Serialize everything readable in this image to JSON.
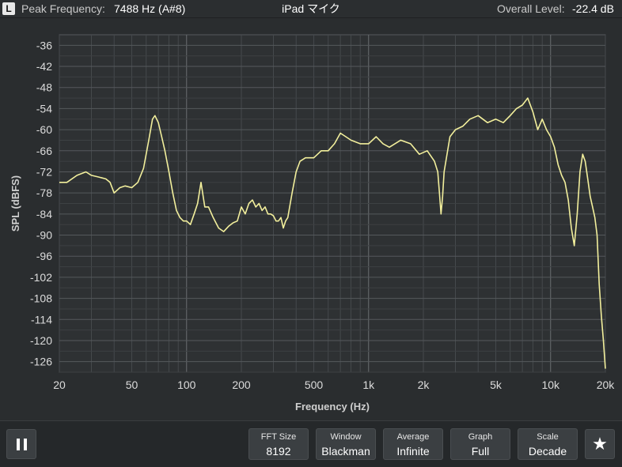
{
  "header": {
    "channel_badge": "L",
    "peak_label": "Peak Frequency:",
    "peak_value": "7488 Hz (A#8)",
    "device_name": "iPad マイク",
    "overall_label": "Overall Level:",
    "overall_value": "-22.4 dB"
  },
  "chart_data": {
    "type": "line",
    "xlabel": "Frequency (Hz)",
    "ylabel": "SPL (dBFS)",
    "x_scale": "log",
    "xlim": [
      20,
      20000
    ],
    "ylim": [
      -130,
      -32
    ],
    "x_ticks": [
      {
        "value": 20,
        "label": "20"
      },
      {
        "value": 50,
        "label": "50"
      },
      {
        "value": 100,
        "label": "100"
      },
      {
        "value": 200,
        "label": "200"
      },
      {
        "value": 500,
        "label": "500"
      },
      {
        "value": 1000,
        "label": "1k"
      },
      {
        "value": 2000,
        "label": "2k"
      },
      {
        "value": 5000,
        "label": "5k"
      },
      {
        "value": 10000,
        "label": "10k"
      },
      {
        "value": 20000,
        "label": "20k"
      }
    ],
    "y_ticks": [
      -36,
      -42,
      -48,
      -54,
      -60,
      -66,
      -72,
      -78,
      -84,
      -90,
      -96,
      -102,
      -108,
      -114,
      -120,
      -126
    ],
    "grid": true,
    "series": [
      {
        "color": "#f2ef9c",
        "x": [
          20,
          22,
          25,
          28,
          30,
          33,
          36,
          38,
          40,
          43,
          46,
          50,
          54,
          58,
          62,
          65,
          67,
          70,
          73,
          76,
          80,
          84,
          88,
          92,
          96,
          100,
          105,
          110,
          115,
          120,
          126,
          132,
          140,
          150,
          160,
          170,
          180,
          190,
          200,
          210,
          220,
          230,
          240,
          250,
          260,
          270,
          280,
          290,
          300,
          310,
          320,
          330,
          340,
          350,
          360,
          380,
          400,
          420,
          450,
          480,
          500,
          550,
          600,
          650,
          700,
          750,
          800,
          900,
          1000,
          1100,
          1200,
          1300,
          1500,
          1700,
          1900,
          2100,
          2300,
          2400,
          2450,
          2500,
          2550,
          2600,
          2800,
          3000,
          3300,
          3600,
          4000,
          4500,
          5000,
          5500,
          6000,
          6500,
          7000,
          7488,
          8000,
          8500,
          9000,
          9500,
          10000,
          10500,
          11000,
          11500,
          12000,
          12500,
          13000,
          13500,
          14000,
          14500,
          15000,
          15500,
          16000,
          16500,
          17000,
          17500,
          18000,
          18500,
          19000,
          19500,
          20000
        ],
        "y": [
          -75,
          -75,
          -73,
          -72,
          -73,
          -73.5,
          -74,
          -75,
          -78,
          -76.5,
          -76,
          -76.5,
          -75,
          -71,
          -63,
          -57,
          -56,
          -58,
          -62,
          -66,
          -72,
          -78,
          -83,
          -85,
          -86,
          -86,
          -87,
          -84,
          -81,
          -75,
          -82,
          -82,
          -85,
          -88,
          -89,
          -87.5,
          -86.5,
          -86,
          -82,
          -84,
          -81,
          -80,
          -82,
          -81,
          -83,
          -82,
          -84,
          -84,
          -84.5,
          -86,
          -86,
          -85,
          -88,
          -86,
          -85,
          -78,
          -72,
          -69,
          -68,
          -68,
          -68,
          -66,
          -66,
          -64,
          -61,
          -62,
          -63,
          -64,
          -64,
          -62,
          -64,
          -65,
          -63,
          -64,
          -67,
          -66,
          -69,
          -72,
          -78,
          -84,
          -79,
          -72,
          -62,
          -60,
          -59,
          -57,
          -56,
          -58,
          -57,
          -58,
          -56,
          -54,
          -53,
          -51,
          -55,
          -60,
          -57,
          -60,
          -62,
          -65,
          -70,
          -73,
          -75,
          -80,
          -88,
          -93,
          -84,
          -72,
          -67,
          -69,
          -74,
          -79,
          -82,
          -85,
          -90,
          -104,
          -113,
          -120,
          -128
        ]
      }
    ]
  },
  "controls": [
    {
      "title": "FFT Size",
      "value": "8192"
    },
    {
      "title": "Window",
      "value": "Blackman"
    },
    {
      "title": "Average",
      "value": "Infinite"
    },
    {
      "title": "Graph",
      "value": "Full"
    },
    {
      "title": "Scale",
      "value": "Decade"
    }
  ],
  "icons": {
    "pause": "pause-icon",
    "favorite": "star-icon"
  },
  "colors": {
    "background": "#2a2d2f",
    "plot_background": "#2e3133",
    "trace": "#f2ef9c"
  }
}
